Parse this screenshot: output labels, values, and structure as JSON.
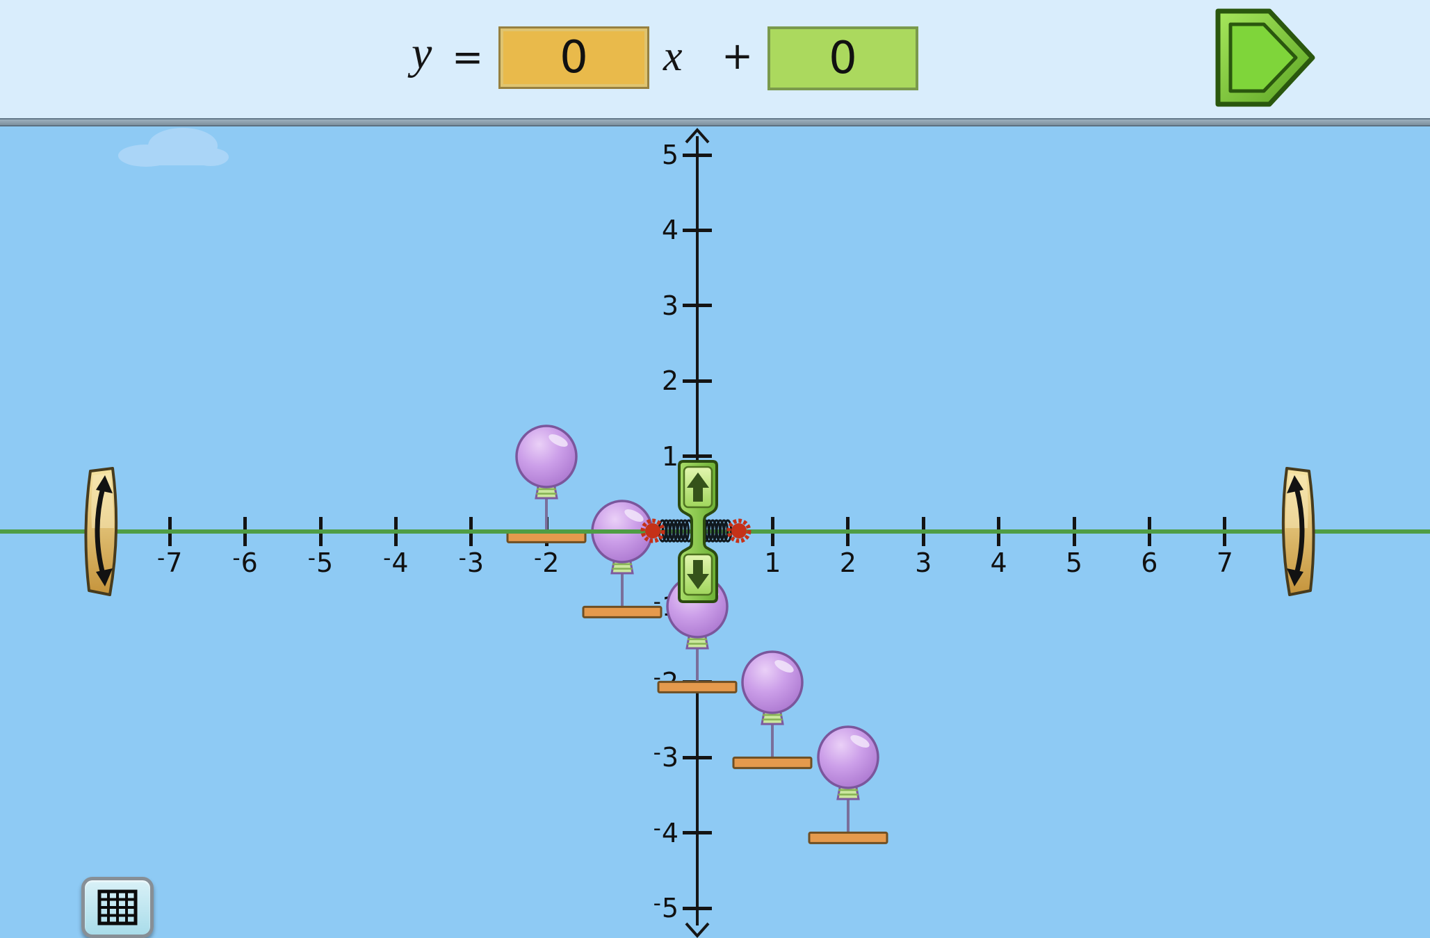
{
  "equation_bar": {
    "y_label": "y",
    "equals_sign": "=",
    "slope_value": "0",
    "x_label": "x",
    "plus_sign": "+",
    "intercept_value": "0"
  },
  "play_button": {
    "icon": "play-pentagon-arrow"
  },
  "grid_button": {
    "icon": "grid"
  },
  "controls": {
    "tilt_handle_left_icon": "curved-double-arrow",
    "tilt_handle_right_icon": "curved-double-arrow",
    "intercept_up_icon": "arrow-up",
    "intercept_down_icon": "arrow-down",
    "spring_anchor_icon": "red-burst"
  },
  "colors": {
    "top_bar_bg": "#d9edfc",
    "sky": "#8ecaf4",
    "line_green": "#4f9d45",
    "slope_box": "#e9ba4b",
    "intercept_box": "#abd95e",
    "balloon_purple": "#c497e6",
    "platform_orange": "#e59a4d",
    "play_green": "#7fd53a",
    "paddle_gold": "#e0bd6a",
    "spring_anchor_red": "#c53118"
  },
  "chart_data": {
    "type": "scatter",
    "title": "",
    "x_axis": {
      "min": -7,
      "max": 7,
      "ticks": [
        -7,
        -6,
        -5,
        -4,
        -3,
        -2,
        -1,
        1,
        2,
        3,
        4,
        5,
        6,
        7
      ]
    },
    "y_axis": {
      "min": -5,
      "max": 5,
      "ticks": [
        -5,
        -4,
        -3,
        -2,
        -1,
        1,
        2,
        3,
        4,
        5
      ]
    },
    "line": {
      "slope": 0,
      "intercept": 0,
      "equation_shown": "y = 0x + 0",
      "color": "#4f9d45"
    },
    "targets": [
      {
        "balloon": [
          -2,
          1
        ],
        "platform": [
          -2,
          0
        ]
      },
      {
        "balloon": [
          -1,
          0
        ],
        "platform": [
          -1,
          -1
        ]
      },
      {
        "balloon": [
          0,
          -1
        ],
        "platform": [
          0,
          -2
        ]
      },
      {
        "balloon": [
          1,
          -2
        ],
        "platform": [
          1,
          -3
        ]
      },
      {
        "balloon": [
          2,
          -3
        ],
        "platform": [
          2,
          -4
        ]
      }
    ]
  }
}
